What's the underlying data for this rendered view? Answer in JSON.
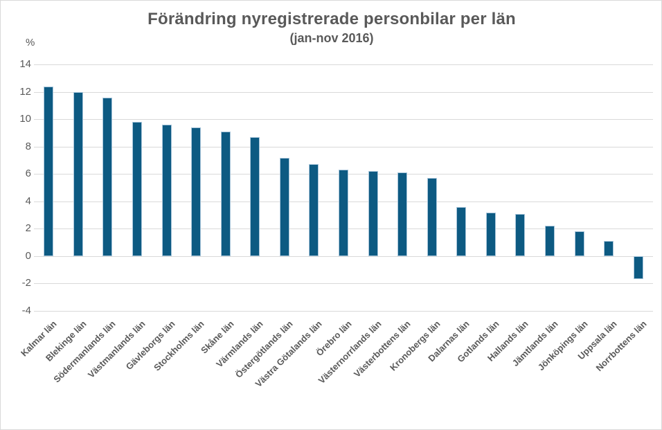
{
  "header": {
    "title": "Förändring nyregistrerade personbilar per län",
    "subtitle": "(jan-nov 2016)",
    "unit_label": "%"
  },
  "colors": {
    "bar_fill": "#0d5a82",
    "bar_stroke": "#a9c6db",
    "gridline": "#d9d9d9",
    "text": "#595959",
    "background": "#ffffff",
    "border": "#d9d9d9"
  },
  "chart_data": {
    "type": "bar",
    "title": "Förändring nyregistrerade personbilar per län",
    "subtitle": "(jan-nov 2016)",
    "xlabel": "",
    "ylabel": "%",
    "ylim": [
      -4,
      14
    ],
    "yticks": [
      14,
      12,
      10,
      8,
      6,
      4,
      2,
      0,
      -2,
      -4
    ],
    "grid": true,
    "legend": false,
    "bar_orientation": "vertical",
    "categories": [
      "Kalmar län",
      "Blekinge län",
      "Södermanlands län",
      "Västmanlands län",
      "Gävleborgs län",
      "Stockholms län",
      "Skåne län",
      "Värmlands län",
      "Östergötlands län",
      "Västra Götalands län",
      "Örebro län",
      "Västernorrlands län",
      "Västerbottens län",
      "Kronobergs län",
      "Dalarnas län",
      "Gotlands län",
      "Hallands län",
      "Jämtlands län",
      "Jönköpings län",
      "Uppsala län",
      "Norrbottens län"
    ],
    "values": [
      12.4,
      12.0,
      11.6,
      9.8,
      9.6,
      9.4,
      9.1,
      8.7,
      7.2,
      6.7,
      6.3,
      6.2,
      6.1,
      5.7,
      3.6,
      3.2,
      3.1,
      2.2,
      1.8,
      1.1,
      -1.7
    ]
  }
}
